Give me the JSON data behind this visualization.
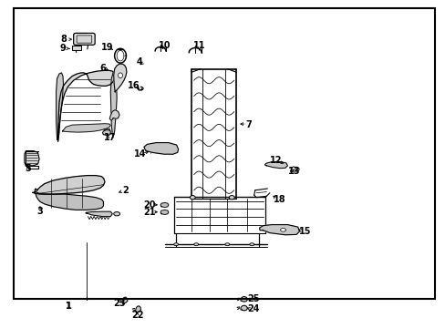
{
  "bg_color": "#ffffff",
  "border_color": "#000000",
  "line_color": "#000000",
  "text_color": "#000000",
  "fig_width": 4.89,
  "fig_height": 3.6,
  "dpi": 100,
  "border": [
    0.03,
    0.09,
    0.975,
    0.975
  ]
}
